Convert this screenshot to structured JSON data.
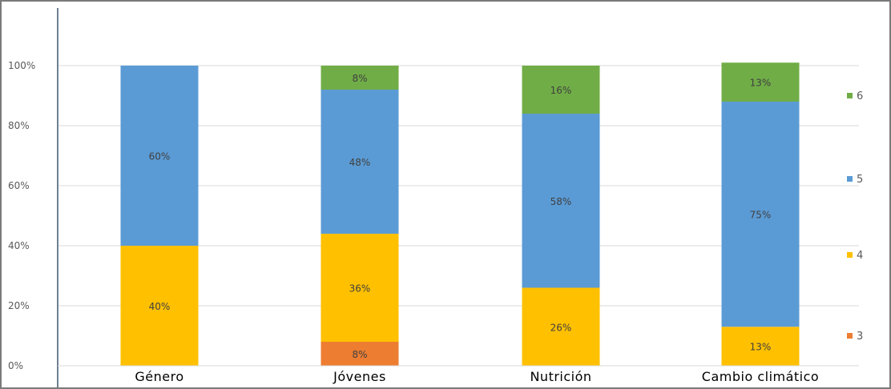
{
  "chart_data": {
    "type": "bar",
    "stacked": true,
    "categories": [
      "Género",
      "Jóvenes",
      "Nutrición",
      "Cambio climático"
    ],
    "series": [
      {
        "name": "3",
        "color": "#ED7D31",
        "values": [
          0,
          8,
          0,
          0
        ]
      },
      {
        "name": "4",
        "color": "#FFC000",
        "values": [
          40,
          36,
          26,
          13
        ]
      },
      {
        "name": "5",
        "color": "#5B9BD5",
        "values": [
          60,
          48,
          58,
          75
        ]
      },
      {
        "name": "6",
        "color": "#70AD47",
        "values": [
          0,
          8,
          16,
          13
        ]
      }
    ],
    "data_labels": [
      [
        "",
        "40%",
        "60%",
        ""
      ],
      [
        "8%",
        "36%",
        "48%",
        "8%"
      ],
      [
        "",
        "26%",
        "58%",
        "16%"
      ],
      [
        "",
        "13%",
        "75%",
        "13%"
      ]
    ],
    "y_ticks": [
      "0%",
      "20%",
      "40%",
      "60%",
      "80%",
      "100%"
    ],
    "ylim": [
      0,
      100
    ],
    "grid": true,
    "legend": "right",
    "title": "",
    "xlabel": "",
    "ylabel": ""
  }
}
